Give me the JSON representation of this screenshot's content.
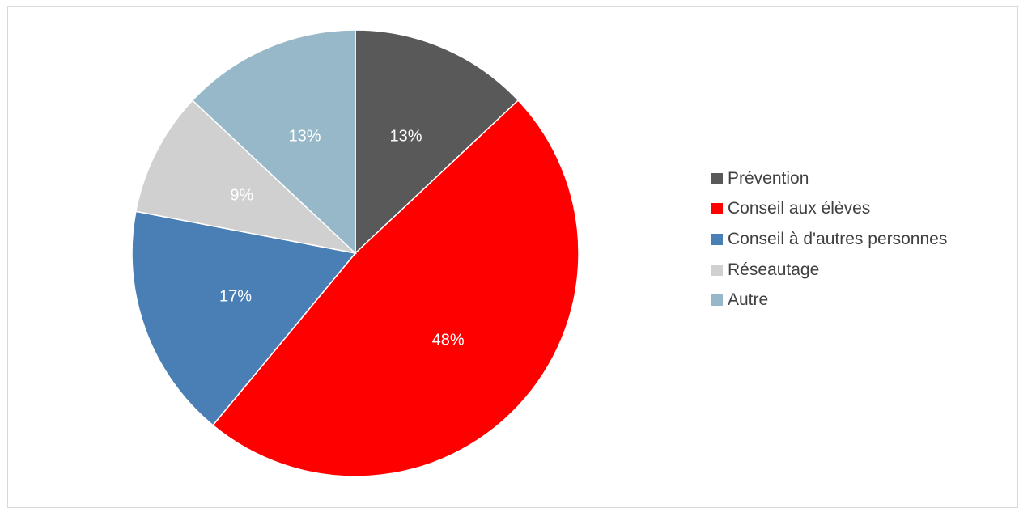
{
  "chart_data": {
    "type": "pie",
    "title": "",
    "legend_position": "right",
    "slices": [
      {
        "label": "Prévention",
        "value": 13,
        "display": "13%",
        "color": "#595959"
      },
      {
        "label": "Conseil aux élèves",
        "value": 48,
        "display": "48%",
        "color": "#ff0000"
      },
      {
        "label": "Conseil à d'autres personnes",
        "value": 17,
        "display": "17%",
        "color": "#4a7fb5"
      },
      {
        "label": "Réseautage",
        "value": 9,
        "display": "9%",
        "color": "#d0d0d0"
      },
      {
        "label": "Autre",
        "value": 13,
        "display": "13%",
        "color": "#97b8c8"
      }
    ]
  }
}
